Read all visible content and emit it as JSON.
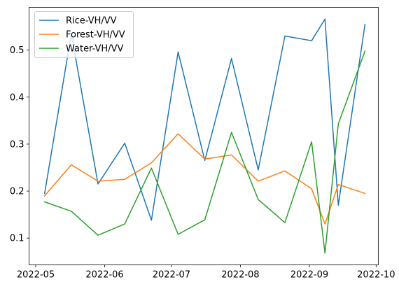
{
  "chart_data": {
    "type": "line",
    "x_type": "date",
    "series": [
      {
        "name": "Rice-VH/VV",
        "color": "#1f77b4",
        "points": [
          [
            "2022-05-05",
            0.195
          ],
          [
            "2022-05-17",
            0.535
          ],
          [
            "2022-05-29",
            0.215
          ],
          [
            "2022-06-10",
            0.302
          ],
          [
            "2022-06-22",
            0.138
          ],
          [
            "2022-07-04",
            0.496
          ],
          [
            "2022-07-16",
            0.265
          ],
          [
            "2022-07-28",
            0.482
          ],
          [
            "2022-08-09",
            0.245
          ],
          [
            "2022-08-21",
            0.53
          ],
          [
            "2022-09-02",
            0.52
          ],
          [
            "2022-09-08",
            0.566
          ],
          [
            "2022-09-14",
            0.17
          ],
          [
            "2022-09-26",
            0.555
          ]
        ]
      },
      {
        "name": "Forest-VH/VV",
        "color": "#ff7f0e",
        "points": [
          [
            "2022-05-05",
            0.19
          ],
          [
            "2022-05-17",
            0.256
          ],
          [
            "2022-05-29",
            0.221
          ],
          [
            "2022-06-10",
            0.225
          ],
          [
            "2022-06-22",
            0.26
          ],
          [
            "2022-07-04",
            0.322
          ],
          [
            "2022-07-16",
            0.268
          ],
          [
            "2022-07-28",
            0.277
          ],
          [
            "2022-08-09",
            0.221
          ],
          [
            "2022-08-21",
            0.243
          ],
          [
            "2022-09-02",
            0.205
          ],
          [
            "2022-09-08",
            0.13
          ],
          [
            "2022-09-14",
            0.214
          ],
          [
            "2022-09-26",
            0.195
          ]
        ]
      },
      {
        "name": "Water-VH/VV",
        "color": "#2ca02c",
        "points": [
          [
            "2022-05-05",
            0.177
          ],
          [
            "2022-05-17",
            0.157
          ],
          [
            "2022-05-29",
            0.106
          ],
          [
            "2022-06-10",
            0.13
          ],
          [
            "2022-06-22",
            0.249
          ],
          [
            "2022-07-04",
            0.108
          ],
          [
            "2022-07-16",
            0.139
          ],
          [
            "2022-07-28",
            0.325
          ],
          [
            "2022-08-09",
            0.182
          ],
          [
            "2022-08-21",
            0.133
          ],
          [
            "2022-09-02",
            0.305
          ],
          [
            "2022-09-08",
            0.068
          ],
          [
            "2022-09-14",
            0.343
          ],
          [
            "2022-09-26",
            0.498
          ]
        ]
      }
    ],
    "x_ticks": [
      "2022-05",
      "2022-06",
      "2022-07",
      "2022-08",
      "2022-09",
      "2022-10"
    ],
    "x_tick_dates": [
      "2022-05-01",
      "2022-06-01",
      "2022-07-01",
      "2022-08-01",
      "2022-09-01",
      "2022-10-01"
    ],
    "y_ticks": [
      0.1,
      0.2,
      0.3,
      0.4,
      0.5
    ],
    "y_tick_labels": [
      "0.1",
      "0.2",
      "0.3",
      "0.4",
      "0.5"
    ],
    "xlim": [
      "2022-04-28",
      "2022-10-02"
    ],
    "ylim": [
      0.043,
      0.591
    ],
    "grid": false,
    "legend_position": "top-left",
    "title": "",
    "xlabel": "",
    "ylabel": ""
  }
}
